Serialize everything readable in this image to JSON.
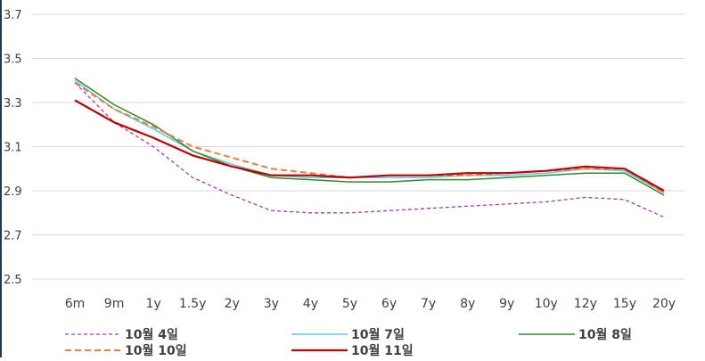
{
  "chart_data": {
    "type": "line",
    "title": "",
    "xlabel": "",
    "ylabel": "",
    "categories": [
      "6m",
      "9m",
      "1y",
      "1.5y",
      "2y",
      "3y",
      "4y",
      "5y",
      "6y",
      "7y",
      "8y",
      "9y",
      "10y",
      "12y",
      "15y",
      "20y"
    ],
    "ylim": [
      2.5,
      3.7
    ],
    "yticks": [
      "2.5",
      "2.7",
      "2.9",
      "3.1",
      "3.3",
      "3.5",
      "3.7"
    ],
    "grid": "horizontal",
    "legend_position": "bottom",
    "series": [
      {
        "name": "10월 4일",
        "color": "#a040a0",
        "dash": "dashed-fine",
        "values": [
          3.39,
          3.21,
          3.1,
          2.96,
          2.88,
          2.81,
          2.8,
          2.8,
          2.81,
          2.82,
          2.83,
          2.84,
          2.85,
          2.87,
          2.86,
          2.78
        ]
      },
      {
        "name": "10월 7일",
        "color": "#5bc8ee",
        "dash": "solid",
        "values": [
          3.4,
          3.27,
          3.18,
          3.08,
          3.02,
          2.97,
          2.96,
          2.96,
          2.96,
          2.96,
          2.97,
          2.97,
          2.98,
          3.0,
          2.99,
          2.89
        ]
      },
      {
        "name": "10월 8일",
        "color": "#2e8b2e",
        "dash": "solid",
        "values": [
          3.41,
          3.29,
          3.2,
          3.08,
          3.01,
          2.96,
          2.95,
          2.94,
          2.94,
          2.95,
          2.95,
          2.96,
          2.97,
          2.98,
          2.98,
          2.88
        ]
      },
      {
        "name": "10월 10일",
        "color": "#ed7d31",
        "dash": "dashed",
        "values": [
          3.39,
          3.27,
          3.19,
          3.1,
          3.05,
          3.0,
          2.98,
          2.96,
          2.97,
          2.97,
          2.97,
          2.98,
          2.99,
          3.0,
          3.0,
          2.89
        ]
      },
      {
        "name": "10월 11일",
        "color": "#c00000",
        "dash": "solid-thick",
        "values": [
          3.31,
          3.21,
          3.14,
          3.06,
          3.01,
          2.97,
          2.97,
          2.96,
          2.97,
          2.97,
          2.98,
          2.98,
          2.99,
          3.01,
          3.0,
          2.9
        ]
      }
    ]
  }
}
